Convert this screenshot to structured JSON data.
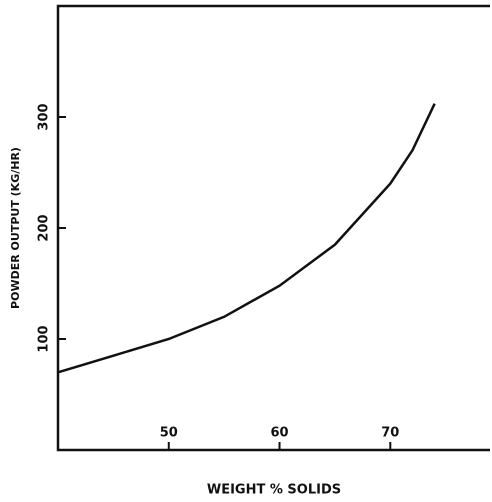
{
  "chart_data": {
    "type": "line",
    "x_label": "WEIGHT % SOLIDS",
    "y_label": "POWDER OUTPUT (KG/HR)",
    "series": [
      {
        "color": "#111111",
        "x": [
          40,
          42,
          45,
          50,
          55,
          60,
          65,
          70,
          72,
          74
        ],
        "values": [
          70,
          76,
          85,
          100,
          120,
          148,
          185,
          240,
          270,
          312
        ]
      }
    ],
    "xlim": [
      40,
      79
    ],
    "xticks": [
      50,
      60,
      70
    ],
    "ylim": [
      0,
      400
    ],
    "yticks": [
      100,
      200,
      300
    ]
  }
}
